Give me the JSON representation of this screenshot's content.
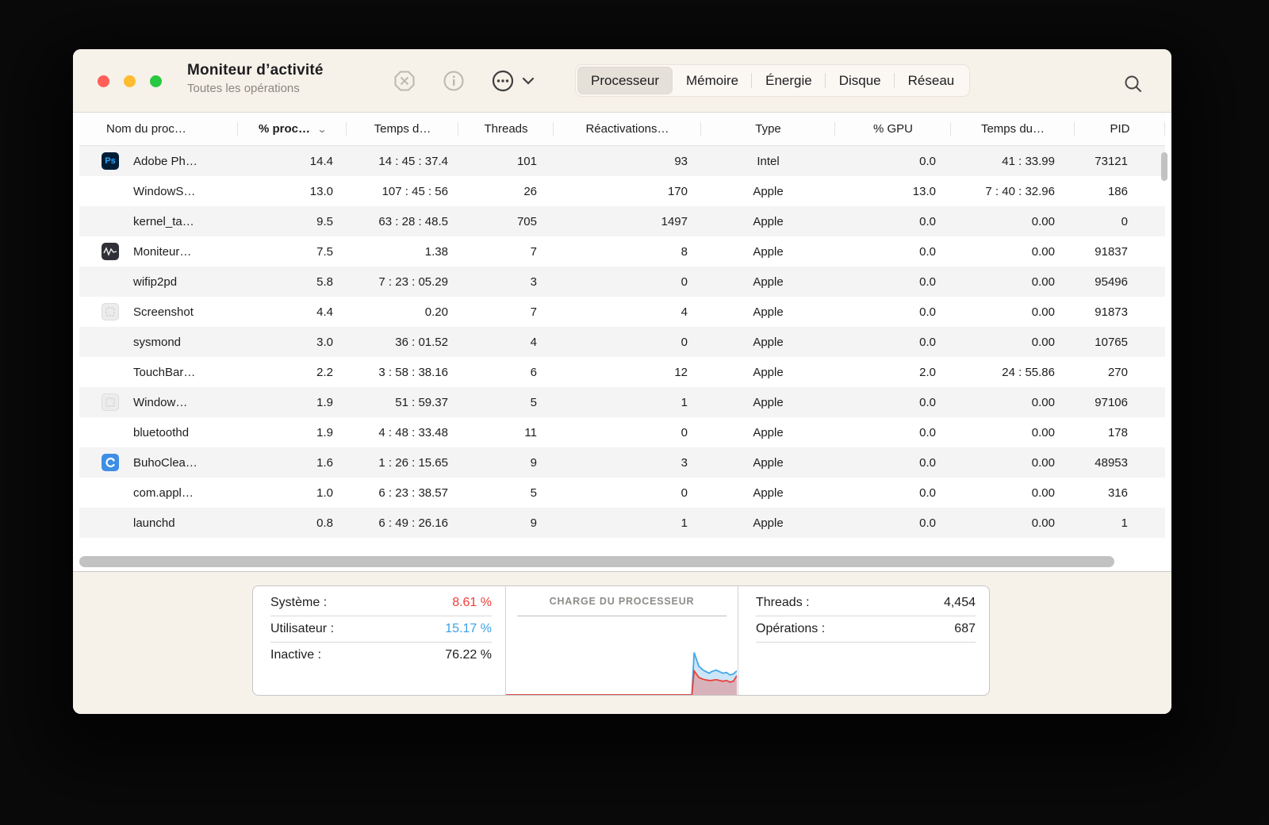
{
  "window": {
    "title": "Moniteur d’activité",
    "subtitle": "Toutes les opérations"
  },
  "toolbar": {
    "icons": [
      "stop-icon",
      "info-icon",
      "more-icon",
      "chevron-down-icon",
      "search-icon"
    ],
    "tabs": [
      {
        "label": "Processeur",
        "selected": true
      },
      {
        "label": "Mémoire",
        "selected": false
      },
      {
        "label": "Énergie",
        "selected": false
      },
      {
        "label": "Disque",
        "selected": false
      },
      {
        "label": "Réseau",
        "selected": false
      }
    ]
  },
  "table": {
    "columns": [
      {
        "key": "name",
        "label": "Nom du proc…",
        "sorted": false
      },
      {
        "key": "cpu",
        "label": "% proc…",
        "sorted": true
      },
      {
        "key": "time",
        "label": "Temps d…",
        "sorted": false
      },
      {
        "key": "threads",
        "label": "Threads",
        "sorted": false
      },
      {
        "key": "wakeups",
        "label": "Réactivations…",
        "sorted": false
      },
      {
        "key": "type",
        "label": "Type",
        "sorted": false
      },
      {
        "key": "gpu",
        "label": "% GPU",
        "sorted": false
      },
      {
        "key": "gputime",
        "label": "Temps du…",
        "sorted": false
      },
      {
        "key": "pid",
        "label": "PID",
        "sorted": false
      }
    ],
    "processes": [
      {
        "icon": "photoshop",
        "name": "Adobe Ph…",
        "cpu": "14.4",
        "time": "14 : 45 : 37.4",
        "threads": "101",
        "wakeups": "93",
        "type": "Intel",
        "gpu": "0.0",
        "gputime": "41 : 33.99",
        "pid": "73121"
      },
      {
        "icon": null,
        "name": "WindowS…",
        "cpu": "13.0",
        "time": "107 : 45 : 56",
        "threads": "26",
        "wakeups": "170",
        "type": "Apple",
        "gpu": "13.0",
        "gputime": "7 : 40 : 32.96",
        "pid": "186"
      },
      {
        "icon": null,
        "name": "kernel_ta…",
        "cpu": "9.5",
        "time": "63 : 28 : 48.5",
        "threads": "705",
        "wakeups": "1497",
        "type": "Apple",
        "gpu": "0.0",
        "gputime": "0.00",
        "pid": "0"
      },
      {
        "icon": "activity-monitor",
        "name": "Moniteur…",
        "cpu": "7.5",
        "time": "1.38",
        "threads": "7",
        "wakeups": "8",
        "type": "Apple",
        "gpu": "0.0",
        "gputime": "0.00",
        "pid": "91837"
      },
      {
        "icon": null,
        "name": "wifip2pd",
        "cpu": "5.8",
        "time": "7 : 23 : 05.29",
        "threads": "3",
        "wakeups": "0",
        "type": "Apple",
        "gpu": "0.0",
        "gputime": "0.00",
        "pid": "95496"
      },
      {
        "icon": "screenshot",
        "name": "Screenshot",
        "cpu": "4.4",
        "time": "0.20",
        "threads": "7",
        "wakeups": "4",
        "type": "Apple",
        "gpu": "0.0",
        "gputime": "0.00",
        "pid": "91873"
      },
      {
        "icon": null,
        "name": "sysmond",
        "cpu": "3.0",
        "time": "36 : 01.52",
        "threads": "4",
        "wakeups": "0",
        "type": "Apple",
        "gpu": "0.0",
        "gputime": "0.00",
        "pid": "10765"
      },
      {
        "icon": null,
        "name": "TouchBar…",
        "cpu": "2.2",
        "time": "3 : 58 : 38.16",
        "threads": "6",
        "wakeups": "12",
        "type": "Apple",
        "gpu": "2.0",
        "gputime": "24 : 55.86",
        "pid": "270"
      },
      {
        "icon": "window-manager",
        "name": "Window…",
        "cpu": "1.9",
        "time": "51 : 59.37",
        "threads": "5",
        "wakeups": "1",
        "type": "Apple",
        "gpu": "0.0",
        "gputime": "0.00",
        "pid": "97106"
      },
      {
        "icon": null,
        "name": "bluetoothd",
        "cpu": "1.9",
        "time": "4 : 48 : 33.48",
        "threads": "11",
        "wakeups": "0",
        "type": "Apple",
        "gpu": "0.0",
        "gputime": "0.00",
        "pid": "178"
      },
      {
        "icon": "buhocleaner",
        "name": "BuhoClea…",
        "cpu": "1.6",
        "time": "1 : 26 : 15.65",
        "threads": "9",
        "wakeups": "3",
        "type": "Apple",
        "gpu": "0.0",
        "gputime": "0.00",
        "pid": "48953"
      },
      {
        "icon": null,
        "name": "com.appl…",
        "cpu": "1.0",
        "time": "6 : 23 : 38.57",
        "threads": "5",
        "wakeups": "0",
        "type": "Apple",
        "gpu": "0.0",
        "gputime": "0.00",
        "pid": "316"
      },
      {
        "icon": null,
        "name": "launchd",
        "cpu": "0.8",
        "time": "6 : 49 : 26.16",
        "threads": "9",
        "wakeups": "1",
        "type": "Apple",
        "gpu": "0.0",
        "gputime": "0.00",
        "pid": "1"
      }
    ]
  },
  "footer": {
    "stats_left": [
      {
        "label": "Système :",
        "value": "8.61 %",
        "color": "#f03e37"
      },
      {
        "label": "Utilisateur :",
        "value": "15.17 %",
        "color": "#3aa2e4"
      },
      {
        "label": "Inactive :",
        "value": "76.22 %",
        "color": "#1d1d1f"
      }
    ],
    "chart_title": "CHARGE DU PROCESSEUR",
    "stats_right": [
      {
        "label": "Threads :",
        "value": "4,454"
      },
      {
        "label": "Opérations :",
        "value": "687"
      }
    ]
  },
  "chart_data": {
    "type": "area",
    "title": "CHARGE DU PROCESSEUR",
    "x_range_pct": [
      0,
      100
    ],
    "y_range_pct": [
      0,
      100
    ],
    "grid": false,
    "legend": "none",
    "series": [
      {
        "name": "Utilisateur",
        "stroke": "#45a7e8",
        "fill": "rgba(140,200,240,0.45)",
        "points": [
          [
            0,
            0
          ],
          [
            80.5,
            0
          ],
          [
            81.5,
            53
          ],
          [
            83.5,
            36
          ],
          [
            85,
            32
          ],
          [
            86,
            30
          ],
          [
            88,
            27
          ],
          [
            89,
            29
          ],
          [
            91,
            31
          ],
          [
            92.5,
            29
          ],
          [
            94,
            27
          ],
          [
            95.5,
            28
          ],
          [
            97,
            25
          ],
          [
            98.5,
            26
          ],
          [
            100,
            30
          ]
        ]
      },
      {
        "name": "Système",
        "stroke": "#e7423a",
        "fill": "rgba(235,100,92,0.40)",
        "points": [
          [
            0,
            0
          ],
          [
            80.5,
            0
          ],
          [
            81.5,
            30
          ],
          [
            83.5,
            22
          ],
          [
            85,
            20
          ],
          [
            86,
            19
          ],
          [
            88,
            18
          ],
          [
            89,
            18
          ],
          [
            91,
            19
          ],
          [
            92.5,
            18
          ],
          [
            94,
            17
          ],
          [
            95.5,
            18
          ],
          [
            97,
            16
          ],
          [
            98.5,
            17
          ],
          [
            100,
            24
          ]
        ]
      }
    ]
  },
  "colors": {
    "titlebar_bg": "#f6f1e9",
    "row_alt_bg": "#f4f4f5",
    "system_red": "#f03e37",
    "user_blue": "#3aa2e4",
    "traffic_red": "#ff5f57",
    "traffic_yellow": "#febc2e",
    "traffic_green": "#28c840"
  }
}
